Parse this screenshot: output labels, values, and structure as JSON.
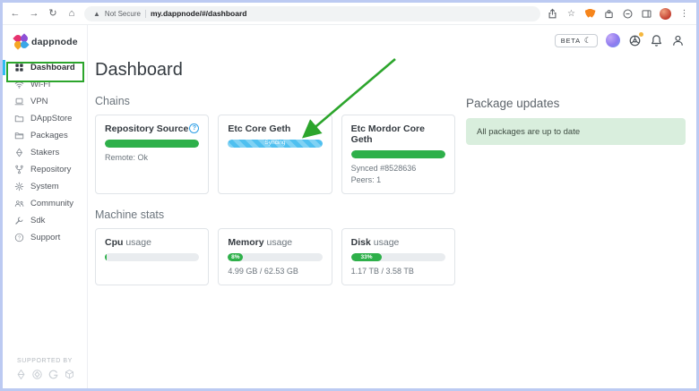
{
  "colors": {
    "accent_green": "#2eb04a",
    "syncing_blue": "#4fc0f0",
    "annotation_green": "#2ca52c",
    "active_item_blue": "#2fbcf2",
    "alert_bg": "#d9eedd"
  },
  "browser": {
    "security_label": "Not Secure",
    "url": "my.dappnode/#/dashboard"
  },
  "topbar": {
    "beta_label": "BETA"
  },
  "sidebar": {
    "logo_text": "dappnode",
    "items": [
      {
        "label": "Dashboard",
        "icon": "grid-icon",
        "active": true
      },
      {
        "label": "Wi-Fi",
        "icon": "wifi-icon",
        "active": false
      },
      {
        "label": "VPN",
        "icon": "laptop-icon",
        "active": false
      },
      {
        "label": "DAppStore",
        "icon": "store-folder-icon",
        "active": false
      },
      {
        "label": "Packages",
        "icon": "folder-icon",
        "active": false
      },
      {
        "label": "Stakers",
        "icon": "ethereum-diamond-icon",
        "active": false
      },
      {
        "label": "Repository",
        "icon": "branch-icon",
        "active": false
      },
      {
        "label": "System",
        "icon": "gear-icon",
        "active": false
      },
      {
        "label": "Community",
        "icon": "people-icon",
        "active": false
      },
      {
        "label": "Sdk",
        "icon": "wrench-icon",
        "active": false
      },
      {
        "label": "Support",
        "icon": "question-circle-icon",
        "active": false
      }
    ],
    "supported_by_label": "SUPPORTED BY"
  },
  "main": {
    "title": "Dashboard",
    "chains": {
      "heading": "Chains",
      "cards": [
        {
          "title": "Repository Source",
          "progress": 100,
          "bar_label": "",
          "line1": "Remote: Ok",
          "line2": ""
        },
        {
          "title": "Etc Core Geth",
          "progress": 100,
          "bar_label": "Syncing",
          "line1": "",
          "line2": ""
        },
        {
          "title": "Etc Mordor Core Geth",
          "progress": 100,
          "bar_label": "",
          "line1": "Synced #8528636",
          "line2": "Peers: 1"
        }
      ]
    },
    "stats": {
      "heading": "Machine stats",
      "cards": [
        {
          "name": "Cpu",
          "suffix": "usage",
          "percent": 2,
          "bar_label": "",
          "subtext": ""
        },
        {
          "name": "Memory",
          "suffix": "usage",
          "percent": 8,
          "bar_label": "8%",
          "subtext": "4.99 GB / 62.53 GB"
        },
        {
          "name": "Disk",
          "suffix": "usage",
          "percent": 33,
          "bar_label": "33%",
          "subtext": "1.17 TB / 3.58 TB"
        }
      ]
    },
    "updates": {
      "heading": "Package updates",
      "alert_text": "All packages are up to date"
    }
  }
}
